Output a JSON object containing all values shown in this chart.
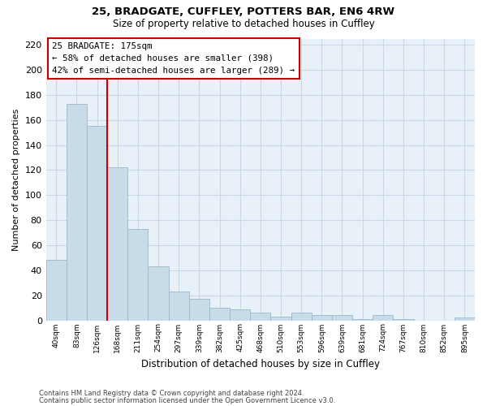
{
  "title1": "25, BRADGATE, CUFFLEY, POTTERS BAR, EN6 4RW",
  "title2": "Size of property relative to detached houses in Cuffley",
  "xlabel": "Distribution of detached houses by size in Cuffley",
  "ylabel": "Number of detached properties",
  "footer1": "Contains HM Land Registry data © Crown copyright and database right 2024.",
  "footer2": "Contains public sector information licensed under the Open Government Licence v3.0.",
  "bar_labels": [
    "40sqm",
    "83sqm",
    "126sqm",
    "168sqm",
    "211sqm",
    "254sqm",
    "297sqm",
    "339sqm",
    "382sqm",
    "425sqm",
    "468sqm",
    "510sqm",
    "553sqm",
    "596sqm",
    "639sqm",
    "681sqm",
    "724sqm",
    "767sqm",
    "810sqm",
    "852sqm",
    "895sqm"
  ],
  "bar_values": [
    48,
    173,
    155,
    122,
    73,
    43,
    23,
    17,
    10,
    9,
    6,
    3,
    6,
    4,
    4,
    1,
    4,
    1,
    0,
    0,
    2
  ],
  "bar_color": "#c8dce8",
  "bar_edge_color": "#9ab8cc",
  "grid_color": "#c8d8e8",
  "vline_x": 3.0,
  "vline_color": "#cc0000",
  "annotation_text": "25 BRADGATE: 175sqm\n← 58% of detached houses are smaller (398)\n42% of semi-detached houses are larger (289) →",
  "ylim": [
    0,
    225
  ],
  "yticks": [
    0,
    20,
    40,
    60,
    80,
    100,
    120,
    140,
    160,
    180,
    200,
    220
  ],
  "background_color": "#ffffff",
  "plot_bg_color": "#e8f0f8"
}
